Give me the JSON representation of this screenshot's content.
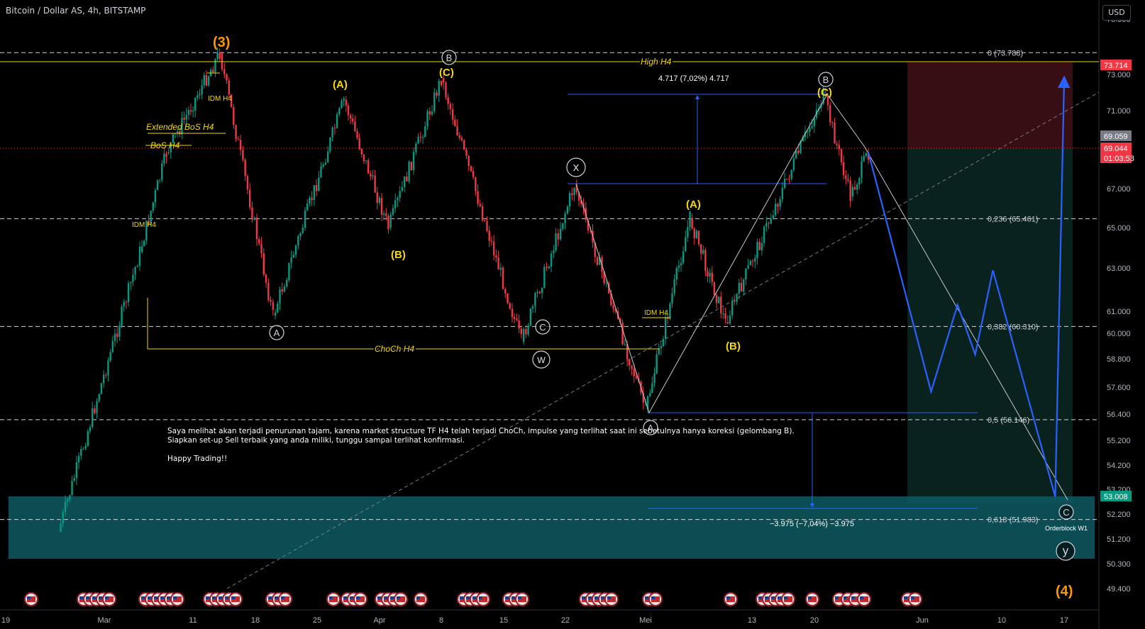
{
  "header": {
    "symbol_title": "Bitcoin / Dollar AS, 4h, BITSTAMP",
    "currency": "USD"
  },
  "price_axis": {
    "ticks": [
      "75.000",
      "73.000",
      "71.000",
      "69.000",
      "67.000",
      "65.000",
      "63.000",
      "61.000",
      "60.000",
      "58.800",
      "57.600",
      "56.400",
      "55.200",
      "54.200",
      "53.200",
      "52.200",
      "51.200",
      "50.300",
      "49.400"
    ],
    "labels": [
      {
        "text": "73.714",
        "color": "#f23645"
      },
      {
        "text": "69.059",
        "color": "#787b86"
      },
      {
        "text": "69.044",
        "color": "#f23645"
      },
      {
        "text": "01:03:53",
        "color": "#f23645"
      },
      {
        "text": "53.008",
        "color": "#089981"
      }
    ]
  },
  "time_axis": {
    "ticks": [
      "19",
      "Mar",
      "11",
      "18",
      "25",
      "Apr",
      "8",
      "15",
      "22",
      "Mei",
      "13",
      "20",
      "Jun",
      "10",
      "17"
    ]
  },
  "fib_levels": [
    {
      "label": "0 (73.788)",
      "price": 73.788
    },
    {
      "label": "0,236 (65.461)",
      "price": 65.461
    },
    {
      "label": "0,382 (60.310)",
      "price": 60.31
    },
    {
      "label": "0,5 (56.146)",
      "price": 56.146
    },
    {
      "label": "0,618 (51.983)",
      "price": 51.983
    }
  ],
  "annotations": {
    "high_h4": "High H4",
    "choch_h4": "ChoCh H4",
    "bos_h4": "BoS H4",
    "ext_bos_h4": "Extended BoS H4",
    "idm_h4_a": "IDM H4",
    "idm_h4_b": "IDM H4",
    "idm_h4_c": "IDM H4",
    "measure_up": "4.717 (7,02%) 4.717",
    "measure_down": "−3.975 (−7,04%) −3.975",
    "orderblock": "Orderblock W1"
  },
  "wave_labels": {
    "w3": "(3)",
    "w4": "(4)",
    "A1": "(A)",
    "B1": "(B)",
    "C1": "(C)",
    "A2": "(A)",
    "B2": "(B)",
    "C2": "(C)",
    "cB1": "B",
    "cA1": "A",
    "cC1": "C",
    "cW": "w",
    "cX": "x",
    "cA2": "A",
    "cB2": "B",
    "cC2": "C",
    "cY": "y"
  },
  "comment": {
    "line1": "Saya melihat akan terjadi penurunan tajam, karena market structure TF H4 telah terjadi ChoCh, impulse yang terlihat saat ini sebetulnya hanya koreksi (gelombang B).",
    "line2": "Siapkan set-up Sell terbaik yang anda miliki, tunggu sampai terlihat konfirmasi.",
    "line3": "Happy Trading!!"
  },
  "colors": {
    "background": "#000000",
    "up": "#089981",
    "down": "#f23645",
    "annotation_yellow": "#f5d90a",
    "wave_orange": "#ff9800",
    "projection_blue": "#2962ff",
    "orderblock": "#0e5a63"
  },
  "chart_data": {
    "type": "candlestick",
    "symbol": "Bitcoin / Dollar AS",
    "timeframe": "4h",
    "exchange": "BITSTAMP",
    "last_price": 69.044,
    "ylim": [
      49.4,
      75.0
    ],
    "swing_path": [
      {
        "t": "Feb 25",
        "price": 51.5
      },
      {
        "t": "Mar 5",
        "price": 63.8
      },
      {
        "t": "Mar 8",
        "price": 69.0
      },
      {
        "t": "Mar 14",
        "price": 73.788
      },
      {
        "t": "Mar 20",
        "price": 60.8
      },
      {
        "t": "Mar 28",
        "price": 71.6
      },
      {
        "t": "Apr 2",
        "price": 65.0
      },
      {
        "t": "Apr 8",
        "price": 72.8
      },
      {
        "t": "Apr 17",
        "price": 59.6
      },
      {
        "t": "Apr 23",
        "price": 67.2
      },
      {
        "t": "May 1",
        "price": 56.6
      },
      {
        "t": "May 6",
        "price": 65.5
      },
      {
        "t": "May 10",
        "price": 60.5
      },
      {
        "t": "May 21",
        "price": 71.9
      },
      {
        "t": "May 24",
        "price": 66.6
      },
      {
        "t": "May 26",
        "price": 69.05
      }
    ],
    "projection": [
      {
        "t": "May 26",
        "price": 69.05
      },
      {
        "t": "Jun 2",
        "price": 57.4
      },
      {
        "t": "Jun 5",
        "price": 61.3
      },
      {
        "t": "Jun 7",
        "price": 59.0
      },
      {
        "t": "Jun 9",
        "price": 62.9
      },
      {
        "t": "Jun 16",
        "price": 52.9
      },
      {
        "t": "Jun 20",
        "price": 72.6
      }
    ]
  }
}
